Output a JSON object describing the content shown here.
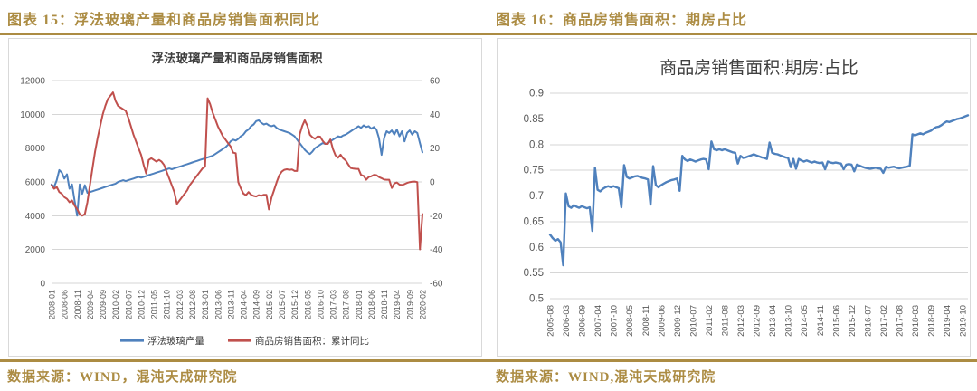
{
  "colors": {
    "accent_gold": "#AC8C43",
    "panel_border": "#d9d9d9",
    "grid": "#d6d6d6",
    "axis_text": "#595959",
    "title_text": "#404040",
    "series_blue": "#4F81BD",
    "series_red": "#C0504D"
  },
  "panels": [
    {
      "figure_label": "图表 15：浮法玻璃产量和商品房销售面积同比",
      "source": "数据来源：WIND，混沌天成研究院"
    },
    {
      "figure_label": "图表 16：商品房销售面积：期房占比",
      "source": "数据来源：WIND,混沌天成研究院"
    }
  ],
  "chart_data": [
    {
      "type": "line",
      "title": "浮法玻璃产量和商品房销售面积",
      "grid": true,
      "legend_position": "bottom",
      "x_tick_every": 5,
      "left_axis": {
        "min": 0,
        "max": 12000,
        "step": 2000
      },
      "right_axis": {
        "min": -60,
        "max": 60,
        "step": 20
      },
      "x": [
        "2008-01",
        "2008-02",
        "2008-03",
        "2008-04",
        "2008-05",
        "2008-06",
        "2008-07",
        "2008-08",
        "2008-09",
        "2008-10",
        "2008-11",
        "2008-12",
        "2009-01",
        "2009-02",
        "2009-03",
        "2009-04",
        "2009-05",
        "2009-06",
        "2009-07",
        "2009-08",
        "2009-09",
        "2009-10",
        "2009-11",
        "2009-12",
        "2010-01",
        "2010-02",
        "2010-03",
        "2010-04",
        "2010-05",
        "2010-06",
        "2010-07",
        "2010-08",
        "2010-09",
        "2010-10",
        "2010-11",
        "2010-12",
        "2011-01",
        "2011-02",
        "2011-03",
        "2011-04",
        "2011-05",
        "2011-06",
        "2011-07",
        "2011-08",
        "2011-09",
        "2011-10",
        "2011-11",
        "2011-12",
        "2012-01",
        "2012-02",
        "2012-03",
        "2012-04",
        "2012-05",
        "2012-06",
        "2012-07",
        "2012-08",
        "2012-09",
        "2012-10",
        "2012-11",
        "2012-12",
        "2013-01",
        "2013-02",
        "2013-03",
        "2013-04",
        "2013-05",
        "2013-06",
        "2013-07",
        "2013-08",
        "2013-09",
        "2013-10",
        "2013-11",
        "2013-12",
        "2014-01",
        "2014-02",
        "2014-03",
        "2014-04",
        "2014-05",
        "2014-06",
        "2014-07",
        "2014-08",
        "2014-09",
        "2014-10",
        "2014-11",
        "2014-12",
        "2015-01",
        "2015-02",
        "2015-03",
        "2015-04",
        "2015-05",
        "2015-06",
        "2015-07",
        "2015-08",
        "2015-09",
        "2015-10",
        "2015-11",
        "2015-12",
        "2016-01",
        "2016-02",
        "2016-03",
        "2016-04",
        "2016-05",
        "2016-06",
        "2016-07",
        "2016-08",
        "2016-09",
        "2016-10",
        "2016-11",
        "2016-12",
        "2017-01",
        "2017-02",
        "2017-03",
        "2017-04",
        "2017-05",
        "2017-06",
        "2017-07",
        "2017-08",
        "2017-09",
        "2017-10",
        "2017-11",
        "2017-12",
        "2018-01",
        "2018-02",
        "2018-03",
        "2018-04",
        "2018-05",
        "2018-06",
        "2018-07",
        "2018-08",
        "2018-09",
        "2018-10",
        "2018-11",
        "2018-12",
        "2019-01",
        "2019-02",
        "2019-03",
        "2019-04",
        "2019-05",
        "2019-06",
        "2019-07",
        "2019-08",
        "2019-09",
        "2019-10",
        "2019-11",
        "2019-12",
        "2020-01",
        "2020-02"
      ],
      "series": [
        {
          "name": "浮法玻璃产量",
          "axis": "left",
          "color": "#4F81BD",
          "values": [
            5850,
            5700,
            6100,
            6700,
            6550,
            6200,
            6450,
            5600,
            5850,
            4900,
            4000,
            5850,
            5300,
            5800,
            5350,
            5400,
            5450,
            5500,
            5550,
            5600,
            5650,
            5700,
            5750,
            5800,
            5850,
            5900,
            6000,
            6050,
            6100,
            6050,
            6100,
            6150,
            6200,
            6250,
            6300,
            6250,
            6300,
            6350,
            6400,
            6450,
            6500,
            6550,
            6600,
            6650,
            6700,
            6750,
            6800,
            6750,
            6800,
            6850,
            6900,
            6950,
            7000,
            7050,
            7100,
            7150,
            7200,
            7250,
            7300,
            7350,
            7400,
            7450,
            7500,
            7550,
            7650,
            7750,
            7850,
            7950,
            8050,
            8200,
            8400,
            8500,
            8450,
            8550,
            8700,
            8800,
            9000,
            9100,
            9300,
            9400,
            9600,
            9650,
            9500,
            9400,
            9450,
            9350,
            9300,
            9350,
            9200,
            9100,
            9050,
            9000,
            8950,
            8900,
            8800,
            8700,
            8500,
            8300,
            8100,
            7900,
            7750,
            7650,
            7800,
            8000,
            8100,
            8200,
            8300,
            8250,
            8300,
            8400,
            8500,
            8600,
            8700,
            8650,
            8750,
            8800,
            8900,
            9000,
            9100,
            9200,
            9300,
            9200,
            9350,
            9250,
            9300,
            9150,
            9250,
            9100,
            8600,
            7600,
            8600,
            9000,
            8900,
            9050,
            8800,
            9100,
            8700,
            9000,
            8400,
            8900,
            9050,
            8800,
            9000,
            8900,
            8300,
            7750
          ]
        },
        {
          "name": "商品房销售面积：累计同比",
          "axis": "right",
          "color": "#C0504D",
          "values": [
            -2,
            -4,
            -3,
            -6,
            -7,
            -9,
            -10,
            -12,
            -11,
            -14,
            -16,
            -19,
            -20,
            -19,
            -12,
            -2,
            8,
            18,
            26,
            33,
            40,
            45,
            49,
            51,
            53,
            48,
            45,
            44,
            43,
            42,
            38,
            33,
            28,
            24,
            20,
            16,
            10,
            5,
            13,
            14,
            13,
            12,
            13,
            12,
            10,
            6,
            2,
            -2,
            -6,
            -13,
            -11,
            -9,
            -7,
            -5,
            -2,
            0,
            2,
            4,
            6,
            8,
            9,
            49.5,
            46,
            41,
            37,
            33,
            30,
            27,
            25,
            23,
            21,
            17.3,
            17,
            -0.1,
            -3.8,
            -6.9,
            -7.8,
            -6,
            -7.6,
            -8.3,
            -8.6,
            -7.8,
            -8.2,
            -7.6,
            -7.6,
            -16.3,
            -9.2,
            -4.8,
            -0.2,
            3.9,
            6.1,
            7.2,
            7.5,
            7.2,
            7.4,
            6.5,
            6.5,
            28.2,
            33.1,
            36.5,
            33.2,
            27.9,
            26.4,
            25.5,
            26.9,
            26.8,
            24.3,
            22.5,
            22.5,
            25.1,
            19.5,
            15.7,
            14.3,
            16.1,
            14,
            12.7,
            10.3,
            8.2,
            7.9,
            7.7,
            7.7,
            4.1,
            3.6,
            1.3,
            2.9,
            3.3,
            4.2,
            4,
            2.9,
            2.2,
            1.4,
            1.3,
            1.3,
            -3.6,
            -0.9,
            -0.3,
            -1.6,
            -1.8,
            -1.3,
            -0.6,
            -0.1,
            0.1,
            0.2,
            -0.1,
            -39.9,
            -19
          ]
        }
      ]
    },
    {
      "type": "line",
      "title": "商品房销售面积:期房:占比",
      "grid": true,
      "legend_position": "none",
      "x_tick_every": 6,
      "left_axis": {
        "min": 0.5,
        "max": 0.9,
        "step": 0.05
      },
      "x": [
        "2005-08",
        "2005-09",
        "2005-10",
        "2005-11",
        "2005-12",
        "2006-02",
        "2006-03",
        "2006-04",
        "2006-05",
        "2006-06",
        "2006-07",
        "2006-08",
        "2006-09",
        "2006-10",
        "2006-11",
        "2006-12",
        "2007-02",
        "2007-03",
        "2007-04",
        "2007-05",
        "2007-06",
        "2007-07",
        "2007-08",
        "2007-09",
        "2007-10",
        "2007-11",
        "2007-12",
        "2008-02",
        "2008-03",
        "2008-04",
        "2008-05",
        "2008-06",
        "2008-07",
        "2008-08",
        "2008-09",
        "2008-10",
        "2008-11",
        "2008-12",
        "2009-02",
        "2009-03",
        "2009-04",
        "2009-05",
        "2009-06",
        "2009-07",
        "2009-08",
        "2009-09",
        "2009-10",
        "2009-11",
        "2009-12",
        "2010-02",
        "2010-03",
        "2010-04",
        "2010-05",
        "2010-06",
        "2010-07",
        "2010-08",
        "2010-09",
        "2010-10",
        "2010-11",
        "2010-12",
        "2011-02",
        "2011-03",
        "2011-04",
        "2011-05",
        "2011-06",
        "2011-07",
        "2011-08",
        "2011-09",
        "2011-10",
        "2011-11",
        "2011-12",
        "2012-02",
        "2012-03",
        "2012-04",
        "2012-05",
        "2012-06",
        "2012-07",
        "2012-08",
        "2012-09",
        "2012-10",
        "2012-11",
        "2012-12",
        "2013-02",
        "2013-03",
        "2013-04",
        "2013-05",
        "2013-06",
        "2013-07",
        "2013-08",
        "2013-09",
        "2013-10",
        "2013-11",
        "2013-12",
        "2014-02",
        "2014-03",
        "2014-04",
        "2014-05",
        "2014-06",
        "2014-07",
        "2014-08",
        "2014-09",
        "2014-10",
        "2014-11",
        "2014-12",
        "2015-02",
        "2015-03",
        "2015-04",
        "2015-05",
        "2015-06",
        "2015-07",
        "2015-08",
        "2015-09",
        "2015-10",
        "2015-11",
        "2015-12",
        "2016-02",
        "2016-03",
        "2016-04",
        "2016-05",
        "2016-06",
        "2016-07",
        "2016-08",
        "2016-09",
        "2016-10",
        "2016-11",
        "2016-12",
        "2017-02",
        "2017-03",
        "2017-04",
        "2017-05",
        "2017-06",
        "2017-07",
        "2017-08",
        "2017-09",
        "2017-10",
        "2017-11",
        "2017-12",
        "2018-02",
        "2018-03",
        "2018-04",
        "2018-05",
        "2018-06",
        "2018-07",
        "2018-08",
        "2018-09",
        "2018-10",
        "2018-11",
        "2018-12",
        "2019-02",
        "2019-03",
        "2019-04",
        "2019-05",
        "2019-06",
        "2019-07",
        "2019-08",
        "2019-09",
        "2019-10",
        "2019-11",
        "2019-12"
      ],
      "series": [
        {
          "name": "商品房销售面积:期房:占比",
          "axis": "left",
          "color": "#4F81BD",
          "values": [
            0.625,
            0.618,
            0.613,
            0.616,
            0.61,
            0.565,
            0.705,
            0.68,
            0.677,
            0.682,
            0.679,
            0.677,
            0.68,
            0.678,
            0.676,
            0.678,
            0.632,
            0.755,
            0.712,
            0.709,
            0.714,
            0.717,
            0.719,
            0.717,
            0.719,
            0.717,
            0.715,
            0.678,
            0.76,
            0.737,
            0.734,
            0.736,
            0.738,
            0.739,
            0.737,
            0.735,
            0.734,
            0.732,
            0.683,
            0.758,
            0.721,
            0.717,
            0.721,
            0.724,
            0.727,
            0.729,
            0.731,
            0.732,
            0.734,
            0.71,
            0.778,
            0.771,
            0.768,
            0.771,
            0.769,
            0.767,
            0.769,
            0.771,
            0.772,
            0.771,
            0.752,
            0.806,
            0.791,
            0.789,
            0.791,
            0.789,
            0.791,
            0.789,
            0.787,
            0.785,
            0.784,
            0.763,
            0.778,
            0.774,
            0.775,
            0.777,
            0.779,
            0.781,
            0.779,
            0.777,
            0.775,
            0.774,
            0.772,
            0.804,
            0.784,
            0.782,
            0.781,
            0.779,
            0.777,
            0.775,
            0.774,
            0.756,
            0.772,
            0.753,
            0.772,
            0.769,
            0.767,
            0.769,
            0.767,
            0.765,
            0.767,
            0.765,
            0.764,
            0.765,
            0.752,
            0.767,
            0.765,
            0.764,
            0.765,
            0.764,
            0.763,
            0.752,
            0.761,
            0.762,
            0.761,
            0.748,
            0.761,
            0.759,
            0.757,
            0.755,
            0.754,
            0.753,
            0.754,
            0.755,
            0.754,
            0.753,
            0.745,
            0.757,
            0.755,
            0.756,
            0.757,
            0.755,
            0.754,
            0.755,
            0.756,
            0.757,
            0.759,
            0.82,
            0.818,
            0.82,
            0.822,
            0.82,
            0.823,
            0.825,
            0.827,
            0.831,
            0.834,
            0.835,
            0.838,
            0.842,
            0.845,
            0.844,
            0.846,
            0.848,
            0.85,
            0.851,
            0.853,
            0.855,
            0.857
          ]
        }
      ]
    }
  ]
}
